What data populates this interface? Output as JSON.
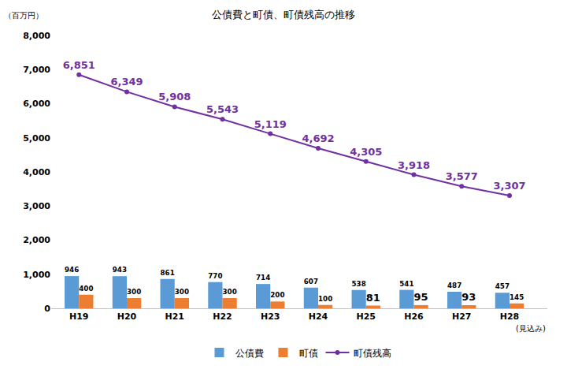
{
  "chart_data": {
    "type": "bar",
    "title": "公債費と町債、町債残高の推移",
    "y_label": "（百万円）",
    "categories": [
      "H19",
      "H20",
      "H21",
      "H22",
      "H23",
      "H24",
      "H25",
      "H26",
      "H27",
      "H28"
    ],
    "series": [
      {
        "name": "公債費",
        "type": "bar",
        "color": "#5b9bd5",
        "values": [
          946,
          943,
          861,
          770,
          714,
          607,
          538,
          541,
          487,
          457
        ]
      },
      {
        "name": "町債",
        "type": "bar",
        "color": "#ed7d31",
        "values": [
          400,
          300,
          300,
          300,
          200,
          100,
          81,
          95,
          93,
          145
        ]
      },
      {
        "name": "町債残高",
        "type": "line",
        "color": "#7030a0",
        "marker": "circle",
        "values": [
          6851,
          6349,
          5908,
          5543,
          5119,
          4692,
          4305,
          3918,
          3577,
          3307
        ],
        "value_labels": [
          "6,851",
          "6,349",
          "5,908",
          "5,543",
          "5,119",
          "4,692",
          "4,305",
          "3,918",
          "3,577",
          "3,307"
        ]
      }
    ],
    "ylim": [
      0,
      8000
    ],
    "yticks": [
      0,
      {
        "value": 1000,
        "label": "1,000"
      },
      {
        "value": 2000,
        "label": "2,000"
      },
      {
        "value": 3000,
        "label": "3,000"
      },
      {
        "value": 4000,
        "label": "4,000"
      },
      {
        "value": 5000,
        "label": "5,000"
      },
      {
        "value": 6000,
        "label": "6,000"
      },
      {
        "value": 7000,
        "label": "7,000"
      },
      {
        "value": 8000,
        "label": "8,000"
      }
    ],
    "grid": false,
    "legend": "bottom",
    "data_labels": true,
    "annotations": [
      {
        "text": "(見込み)",
        "category": "H28"
      }
    ]
  }
}
